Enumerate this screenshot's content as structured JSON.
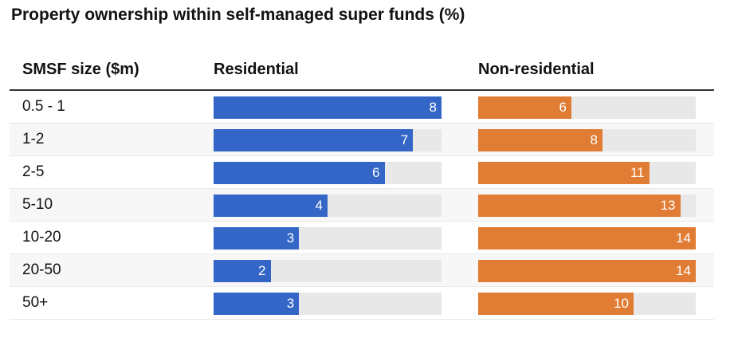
{
  "title": "Property ownership within self-managed super funds (%)",
  "headers": {
    "size": "SMSF size ($m)",
    "residential": "Residential",
    "non_residential": "Non-residential"
  },
  "colors": {
    "residential": "#3366c6",
    "non_residential": "#e07c33",
    "track": "#e8e8e8"
  },
  "chart_data": {
    "type": "bar",
    "title": "Property ownership within self-managed super funds (%)",
    "categories": [
      "0.5 - 1",
      "1-2",
      "2-5",
      "5-10",
      "10-20",
      "20-50",
      "50+"
    ],
    "series": [
      {
        "name": "Residential",
        "values": [
          8,
          7,
          6,
          4,
          3,
          2,
          3
        ],
        "max": 8
      },
      {
        "name": "Non-residential",
        "values": [
          6,
          8,
          11,
          13,
          14,
          14,
          10
        ],
        "max": 14
      }
    ]
  }
}
